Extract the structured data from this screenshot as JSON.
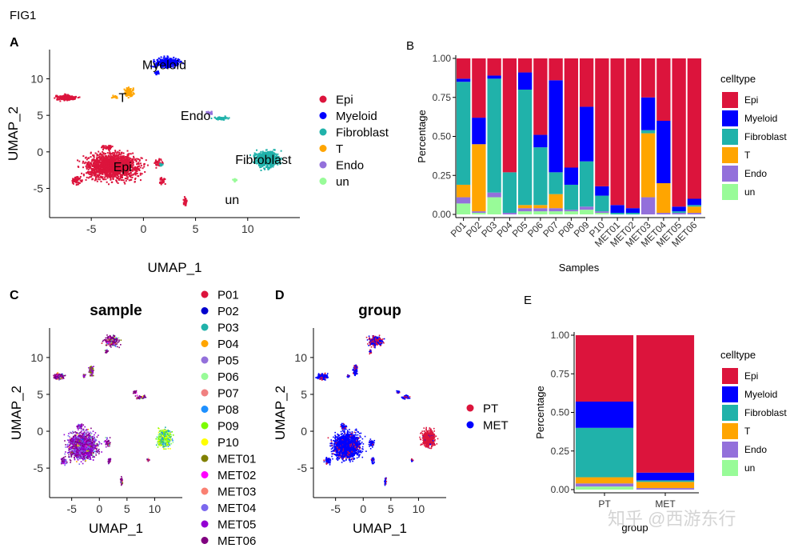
{
  "figure": {
    "title": "FIG1",
    "watermark": "知乎 @西游东行",
    "celltype_colors": {
      "Epi": "#DC143C",
      "Myeloid": "#0000FF",
      "Fibroblast": "#20B2AA",
      "T": "#FFA500",
      "Endo": "#9370DB",
      "un": "#98FB98"
    }
  },
  "chart_data": [
    {
      "panel": "A",
      "type": "scatter",
      "title": "",
      "xlabel": "UMAP_1",
      "ylabel": "UMAP_2",
      "xlim": [
        -9,
        15
      ],
      "ylim": [
        -9,
        14
      ],
      "xticks": [
        -5,
        0,
        5,
        10
      ],
      "yticks": [
        -5,
        0,
        5,
        10
      ],
      "legend": [
        "Epi",
        "Myeloid",
        "Fibroblast",
        "T",
        "Endo",
        "un"
      ],
      "clusters": [
        {
          "name": "Epi",
          "label": "Epi",
          "color": "#DC143C",
          "x": -2,
          "y": -2
        },
        {
          "name": "Myeloid",
          "label": "Myeloid",
          "color": "#0000FF",
          "x": 2,
          "y": 12
        },
        {
          "name": "Fibroblast",
          "label": "Fibroblast",
          "color": "#20B2AA",
          "x": 11.5,
          "y": -1
        },
        {
          "name": "T",
          "label": "T",
          "color": "#FFA500",
          "x": -2,
          "y": 7.5
        },
        {
          "name": "Endo",
          "label": "Endo",
          "color": "#9370DB",
          "x": 5,
          "y": 5
        },
        {
          "name": "un",
          "label": "un",
          "color": "#98FB98",
          "x": 8.5,
          "y": -6.5
        }
      ]
    },
    {
      "panel": "B",
      "type": "bar",
      "stacked": true,
      "xlabel": "Samples",
      "ylabel": "Percentage",
      "ylim": [
        0,
        1
      ],
      "yticks": [
        "0.00",
        "0.25",
        "0.50",
        "0.75",
        "1.00"
      ],
      "legend_title": "celltype",
      "categories": [
        "P01",
        "P02",
        "P03",
        "P04",
        "P05",
        "P06",
        "P07",
        "P08",
        "P09",
        "P10",
        "MET01",
        "MET02",
        "MET03",
        "MET04",
        "MET05",
        "MET06"
      ],
      "series": [
        {
          "name": "un",
          "values": [
            0.07,
            0.01,
            0.11,
            0.0,
            0.02,
            0.02,
            0.02,
            0.02,
            0.03,
            0.01,
            0.0,
            0.0,
            0.0,
            0.0,
            0.0,
            0.0
          ]
        },
        {
          "name": "Endo",
          "values": [
            0.04,
            0.01,
            0.03,
            0.01,
            0.02,
            0.02,
            0.02,
            0.01,
            0.02,
            0.01,
            0.0,
            0.0,
            0.11,
            0.01,
            0.01,
            0.01
          ]
        },
        {
          "name": "T",
          "values": [
            0.08,
            0.43,
            0.0,
            0.0,
            0.02,
            0.02,
            0.09,
            0.0,
            0.0,
            0.0,
            0.0,
            0.0,
            0.41,
            0.19,
            0.0,
            0.04
          ]
        },
        {
          "name": "Fibroblast",
          "values": [
            0.66,
            0.0,
            0.73,
            0.26,
            0.74,
            0.37,
            0.14,
            0.16,
            0.29,
            0.1,
            0.01,
            0.01,
            0.02,
            0.0,
            0.01,
            0.01
          ]
        },
        {
          "name": "Myeloid",
          "values": [
            0.02,
            0.17,
            0.02,
            0.0,
            0.11,
            0.08,
            0.59,
            0.11,
            0.35,
            0.06,
            0.05,
            0.03,
            0.21,
            0.4,
            0.03,
            0.04
          ]
        },
        {
          "name": "Epi",
          "values": [
            0.13,
            0.38,
            0.11,
            0.73,
            0.09,
            0.49,
            0.14,
            0.7,
            0.31,
            0.82,
            0.94,
            0.96,
            0.25,
            0.4,
            0.95,
            0.9
          ]
        }
      ]
    },
    {
      "panel": "C",
      "type": "scatter",
      "title": "sample",
      "xlabel": "UMAP_1",
      "ylabel": "UMAP_2",
      "xlim": [
        -9,
        15
      ],
      "ylim": [
        -9,
        14
      ],
      "xticks": [
        -5,
        0,
        5,
        10
      ],
      "yticks": [
        -5,
        0,
        5,
        10
      ],
      "legend": [
        {
          "name": "P01",
          "color": "#DC143C"
        },
        {
          "name": "P02",
          "color": "#0000CD"
        },
        {
          "name": "P03",
          "color": "#20B2AA"
        },
        {
          "name": "P04",
          "color": "#FFA500"
        },
        {
          "name": "P05",
          "color": "#9370DB"
        },
        {
          "name": "P06",
          "color": "#98FB98"
        },
        {
          "name": "P07",
          "color": "#F08080"
        },
        {
          "name": "P08",
          "color": "#1E90FF"
        },
        {
          "name": "P09",
          "color": "#7CFC00"
        },
        {
          "name": "P10",
          "color": "#FFFF00"
        },
        {
          "name": "MET01",
          "color": "#808000"
        },
        {
          "name": "MET02",
          "color": "#FF00FF"
        },
        {
          "name": "MET03",
          "color": "#FA8072"
        },
        {
          "name": "MET04",
          "color": "#7B68EE"
        },
        {
          "name": "MET05",
          "color": "#9400D3"
        },
        {
          "name": "MET06",
          "color": "#800080"
        }
      ]
    },
    {
      "panel": "D",
      "type": "scatter",
      "title": "group",
      "xlabel": "UMAP_1",
      "ylabel": "UMAP_2",
      "xlim": [
        -9,
        15
      ],
      "ylim": [
        -9,
        14
      ],
      "xticks": [
        -5,
        0,
        5,
        10
      ],
      "yticks": [
        -5,
        0,
        5,
        10
      ],
      "legend": [
        {
          "name": "PT",
          "color": "#DC143C"
        },
        {
          "name": "MET",
          "color": "#0000FF"
        }
      ]
    },
    {
      "panel": "E",
      "type": "bar",
      "stacked": true,
      "xlabel": "group",
      "ylabel": "Percentage",
      "ylim": [
        0,
        1
      ],
      "yticks": [
        "0.00",
        "0.25",
        "0.50",
        "0.75",
        "1.00"
      ],
      "legend_title": "celltype",
      "categories": [
        "PT",
        "MET"
      ],
      "series": [
        {
          "name": "un",
          "values": [
            0.02,
            0.0
          ]
        },
        {
          "name": "Endo",
          "values": [
            0.02,
            0.01
          ]
        },
        {
          "name": "T",
          "values": [
            0.04,
            0.04
          ]
        },
        {
          "name": "Fibroblast",
          "values": [
            0.32,
            0.01
          ]
        },
        {
          "name": "Myeloid",
          "values": [
            0.17,
            0.05
          ]
        },
        {
          "name": "Epi",
          "values": [
            0.43,
            0.89
          ]
        }
      ]
    }
  ]
}
